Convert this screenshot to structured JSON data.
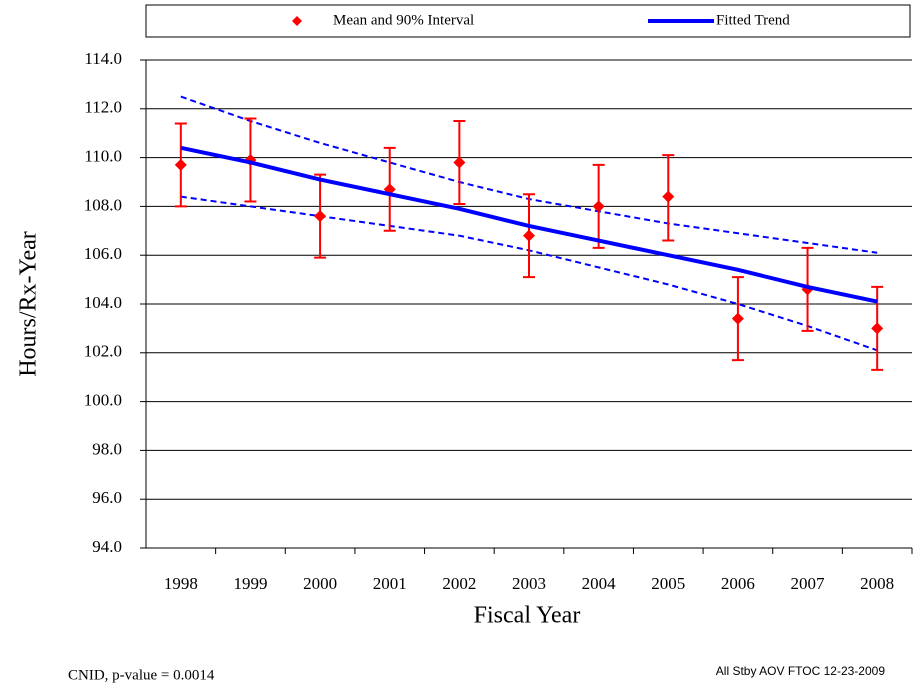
{
  "chart_data": {
    "type": "errorbar",
    "categories": [
      "1998",
      "1999",
      "2000",
      "2001",
      "2002",
      "2003",
      "2004",
      "2005",
      "2006",
      "2007",
      "2008"
    ],
    "series": [
      {
        "name": "Mean and 90% Interval",
        "color": "#ff0000",
        "values": [
          109.7,
          109.9,
          107.6,
          108.7,
          109.8,
          106.8,
          108.0,
          108.4,
          103.4,
          104.6,
          103.0
        ],
        "lower": [
          108.0,
          108.2,
          105.9,
          107.0,
          108.1,
          105.1,
          106.3,
          106.6,
          101.7,
          102.9,
          101.3
        ],
        "upper": [
          111.4,
          111.6,
          109.3,
          110.4,
          111.5,
          108.5,
          109.7,
          110.1,
          105.1,
          106.3,
          104.7
        ]
      },
      {
        "name": "Fitted Trend",
        "color": "#0000ff",
        "values": [
          110.4,
          109.8,
          109.1,
          108.5,
          107.9,
          107.2,
          106.6,
          106.0,
          105.4,
          104.7,
          104.1
        ]
      }
    ],
    "band": {
      "color": "#0000ff",
      "upper": [
        112.5,
        111.5,
        110.6,
        109.8,
        109.0,
        108.3,
        107.8,
        107.3,
        106.9,
        106.5,
        106.1
      ],
      "lower": [
        108.4,
        108.0,
        107.6,
        107.2,
        106.8,
        106.2,
        105.5,
        104.8,
        104.0,
        103.1,
        102.1
      ]
    },
    "y_label": "Hours/Rx-Year",
    "x_label": "Fiscal Year",
    "ylim": [
      94,
      114
    ],
    "yticks": [
      {
        "value": 94,
        "label": "94.0"
      },
      {
        "value": 96,
        "label": "96.0"
      },
      {
        "value": 98,
        "label": "98.0"
      },
      {
        "value": 100,
        "label": "100.0"
      },
      {
        "value": 102,
        "label": "102.0"
      },
      {
        "value": 104,
        "label": "104.0"
      },
      {
        "value": 106,
        "label": "106.0"
      },
      {
        "value": 108,
        "label": "108.0"
      },
      {
        "value": 110,
        "label": "110.0"
      },
      {
        "value": 112,
        "label": "112.0"
      },
      {
        "value": 114,
        "label": "114.0"
      }
    ],
    "grid": true,
    "annotations": [
      "CNID, p-value = 0.0014",
      "All Stby AOV FTOC 12-23-2009"
    ]
  }
}
